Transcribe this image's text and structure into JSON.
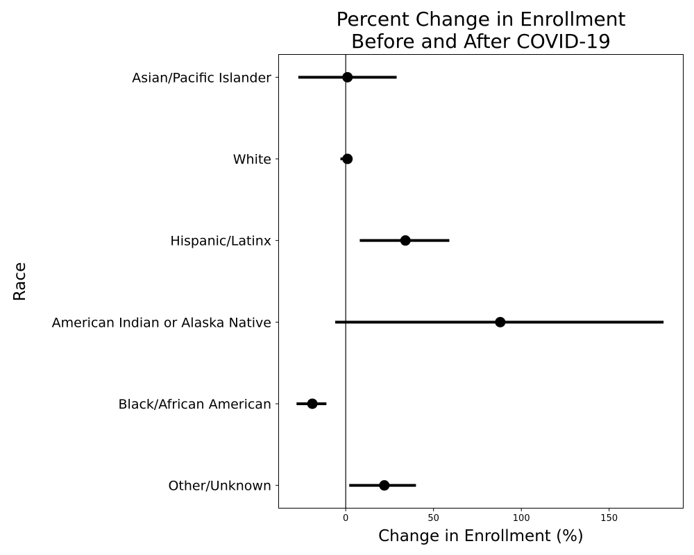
{
  "chart_data": {
    "type": "scatter",
    "style": "point-range",
    "title_lines": [
      "Percent Change in Enrollment",
      "Before and After COVID-19"
    ],
    "xlabel": "Change in Enrollment (%)",
    "ylabel": "Race",
    "xlim": [
      -38,
      192
    ],
    "xticks": [
      0,
      50,
      100,
      150
    ],
    "reference_line_x": 0,
    "grid": false,
    "marker_color": "#000000",
    "categories": [
      "Asian/Pacific Islander",
      "White",
      "Hispanic/Latinx",
      "American Indian or Alaska Native",
      "Black/African American",
      "Other/Unknown"
    ],
    "points": [
      {
        "category": "Asian/Pacific Islander",
        "value": 1,
        "low": -27,
        "high": 29
      },
      {
        "category": "White",
        "value": 1,
        "low": -3,
        "high": 3
      },
      {
        "category": "Hispanic/Latinx",
        "value": 34,
        "low": 8,
        "high": 59
      },
      {
        "category": "American Indian or Alaska Native",
        "value": 88,
        "low": -6,
        "high": 181
      },
      {
        "category": "Black/African American",
        "value": -19,
        "low": -28,
        "high": -11
      },
      {
        "category": "Other/Unknown",
        "value": 22,
        "low": 2,
        "high": 40
      }
    ]
  }
}
